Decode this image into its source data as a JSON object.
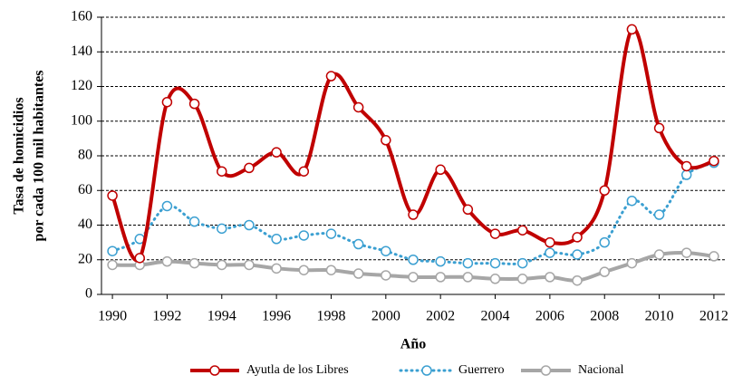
{
  "chart_data": {
    "type": "line",
    "ylabel": [
      "Tasa de homicidios",
      "por cada 100 mil habitantes"
    ],
    "xlabel": "Año",
    "x": [
      1990,
      1991,
      1992,
      1993,
      1994,
      1995,
      1996,
      1997,
      1998,
      1999,
      2000,
      2001,
      2002,
      2003,
      2004,
      2005,
      2006,
      2007,
      2008,
      2009,
      2010,
      2011,
      2012
    ],
    "series": [
      {
        "name": "Ayutla de los Libres",
        "color": "#c00000",
        "style": "solid",
        "values": [
          57,
          21,
          111,
          110,
          71,
          73,
          82,
          71,
          126,
          108,
          89,
          46,
          72,
          49,
          35,
          37,
          30,
          33,
          60,
          153,
          96,
          74,
          77
        ]
      },
      {
        "name": "Guerrero",
        "color": "#3a9fd1",
        "style": "dotted",
        "values": [
          25,
          32,
          51,
          42,
          38,
          40,
          32,
          34,
          35,
          29,
          25,
          20,
          19,
          18,
          18,
          18,
          24,
          23,
          30,
          54,
          46,
          69,
          76
        ]
      },
      {
        "name": "Nacional",
        "color": "#a6a6a6",
        "style": "solid",
        "values": [
          17,
          17,
          19,
          18,
          17,
          17,
          15,
          14,
          14,
          12,
          11,
          10,
          10,
          10,
          9,
          9,
          10,
          8,
          13,
          18,
          23,
          24,
          22
        ]
      }
    ],
    "xlim": [
      1989.6,
      2012.4
    ],
    "xticks": [
      1990,
      1992,
      1994,
      1996,
      1998,
      2000,
      2002,
      2004,
      2006,
      2008,
      2010,
      2012
    ],
    "ylim": [
      0,
      160
    ],
    "yticks": [
      0,
      20,
      40,
      60,
      80,
      100,
      120,
      140,
      160
    ],
    "grid": true,
    "legend": "bottom"
  }
}
